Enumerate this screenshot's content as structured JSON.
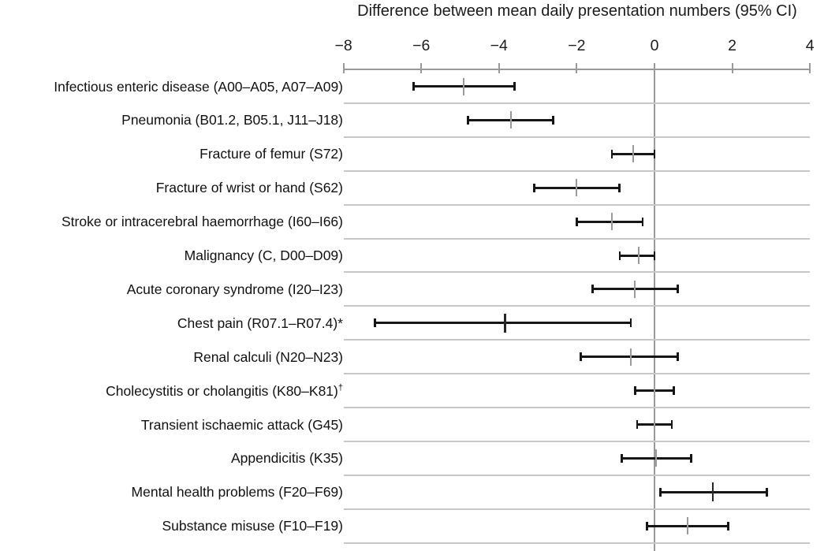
{
  "chart_data": {
    "type": "scatter",
    "subtype": "forest-plot-horizontal-ci",
    "title": "Difference between mean daily presentation numbers (95% CI)",
    "xlabel": "Difference between mean daily presentation numbers (95% CI)",
    "ylabel": "",
    "xlim": [
      -8,
      4
    ],
    "xticks": [
      -8,
      -6,
      -4,
      -2,
      0,
      2,
      4
    ],
    "xtick_labels": [
      "−8",
      "−6",
      "−4",
      "−2",
      "0",
      "2",
      "4"
    ],
    "grid": "light horizontal gridline under each row; vertical reference line at 0",
    "legend": "none",
    "rows": [
      {
        "label": "Infectious enteric disease (A00–A05, A07–A09)",
        "estimate": -4.9,
        "ci_low": -6.2,
        "ci_high": -3.6
      },
      {
        "label": "Pneumonia (B01.2, B05.1, J11–J18)",
        "estimate": -3.7,
        "ci_low": -4.8,
        "ci_high": -2.6
      },
      {
        "label": "Fracture of femur (S72)",
        "estimate": -0.55,
        "ci_low": -1.1,
        "ci_high": 0.0
      },
      {
        "label": "Fracture of wrist or hand (S62)",
        "estimate": -2.0,
        "ci_low": -3.1,
        "ci_high": -0.9
      },
      {
        "label": "Stroke or intracerebral haemorrhage (I60–I66)",
        "estimate": -1.1,
        "ci_low": -2.0,
        "ci_high": -0.3
      },
      {
        "label": "Malignancy (C, D00–D09)",
        "estimate": -0.4,
        "ci_low": -0.9,
        "ci_high": 0.0
      },
      {
        "label": "Acute coronary syndrome (I20–I23)",
        "estimate": -0.5,
        "ci_low": -1.6,
        "ci_high": 0.6
      },
      {
        "label": "Chest pain (R07.1–R07.4)*",
        "estimate": -3.85,
        "ci_low": -7.2,
        "ci_high": -0.6,
        "emphasis": true
      },
      {
        "label": "Renal calculi (N20–N23)",
        "estimate": -0.6,
        "ci_low": -1.9,
        "ci_high": 0.6
      },
      {
        "label": "Cholecystitis or cholangitis (K80–K81)",
        "sup": "†",
        "estimate": 0.0,
        "ci_low": -0.5,
        "ci_high": 0.5
      },
      {
        "label": "Transient ischaemic attack (G45)",
        "estimate": 0.0,
        "ci_low": -0.45,
        "ci_high": 0.45
      },
      {
        "label": "Appendicitis (K35)",
        "estimate": 0.05,
        "ci_low": -0.85,
        "ci_high": 0.95
      },
      {
        "label": "Mental health problems (F20–F69)",
        "estimate": 1.5,
        "ci_low": 0.15,
        "ci_high": 2.9,
        "emphasis": true
      },
      {
        "label": "Substance misuse (F10–F19)",
        "estimate": 0.85,
        "ci_low": -0.2,
        "ci_high": 1.9
      }
    ],
    "colors": {
      "ci_line": "#161616",
      "point_tick": "#9a9a9a",
      "point_tick_emphasis": "#262626",
      "axis": "#9a9a9a",
      "gridline": "#c8c8c8",
      "text": "#1b1b1b",
      "background": "#ffffff"
    }
  }
}
